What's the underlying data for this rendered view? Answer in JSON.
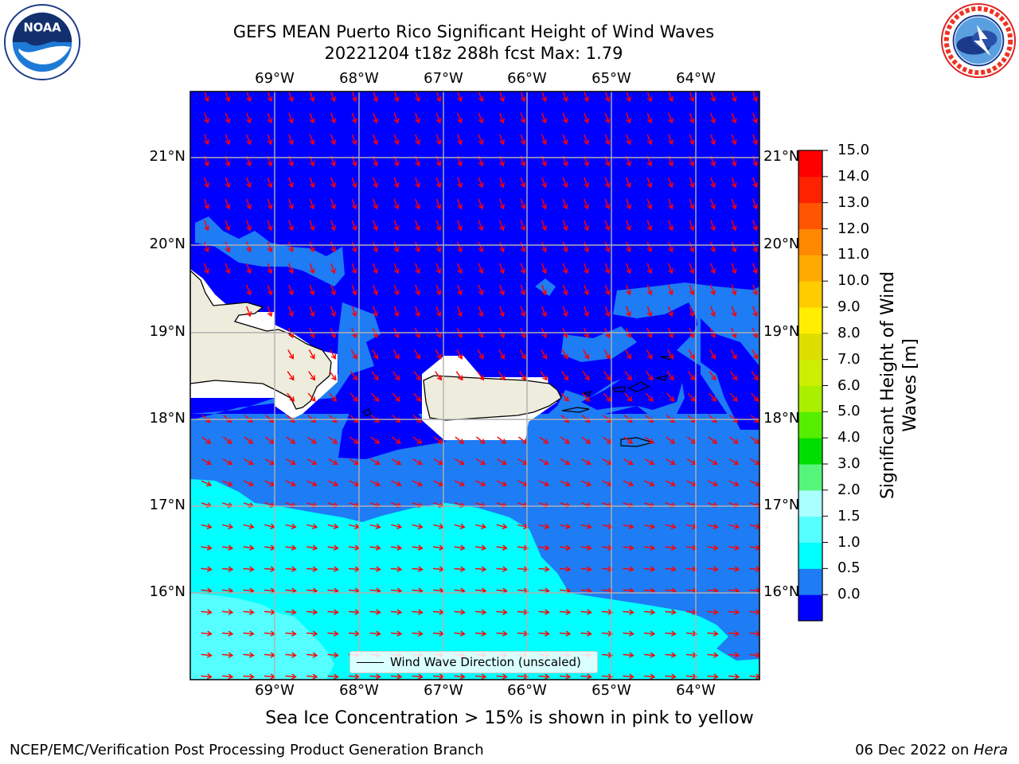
{
  "header": {
    "title_line1": "GEFS MEAN Puerto Rico Significant Height of Wind Waves",
    "title_line2": "20221204 t18z 288h fcst   Max: 1.79"
  },
  "logos": {
    "left": {
      "icon": "noaa-logo-icon",
      "text": "NOAA",
      "ring_text": "NATIONAL OCEANIC AND ATMOSPHERIC ADMINISTRATION · U.S. DEPARTMENT OF COMMERCE"
    },
    "right": {
      "icon": "nws-logo-icon",
      "ring_text": "NATIONAL WEATHER SERVICE"
    }
  },
  "map": {
    "lon_ticks": [
      "69°W",
      "68°W",
      "67°W",
      "66°W",
      "65°W",
      "64°W"
    ],
    "lat_ticks": [
      "21°N",
      "20°N",
      "19°N",
      "18°N",
      "17°N",
      "16°N"
    ],
    "lon_extent": [
      -70.0,
      -63.25
    ],
    "lat_extent": [
      15.0,
      21.75
    ],
    "gridlines": true,
    "arrow_color": "#ff0000",
    "land_color": "#eeeddd"
  },
  "legend": {
    "label": "Wind Wave Direction (unscaled)",
    "placement": "lower-center"
  },
  "colorbar": {
    "label": "Significant Height of Wind Waves [m]",
    "ticks": [
      "15.0",
      "14.0",
      "13.0",
      "12.0",
      "11.0",
      "10.0",
      "9.0",
      "8.0",
      "7.0",
      "6.0",
      "5.0",
      "4.0",
      "3.0",
      "2.0",
      "1.5",
      "1.0",
      "0.5",
      "0.0"
    ],
    "colors": [
      "#0000ff",
      "#1e7cf5",
      "#00ffff",
      "#55ffff",
      "#aaffff",
      "#55f57a",
      "#00dd00",
      "#55ee00",
      "#aaee00",
      "#ccee00",
      "#dddd00",
      "#ffee00",
      "#ffcc00",
      "#ffaa00",
      "#ff8800",
      "#ff5500",
      "#ff2200",
      "#ff0000"
    ]
  },
  "caption": "Sea Ice Concentration > 15% is shown in pink to yellow",
  "footer": {
    "left": "NCEP/EMC/Verification Post Processing Product Generation Branch",
    "right_date": "06 Dec 2022 on ",
    "right_machine": "Hera"
  }
}
